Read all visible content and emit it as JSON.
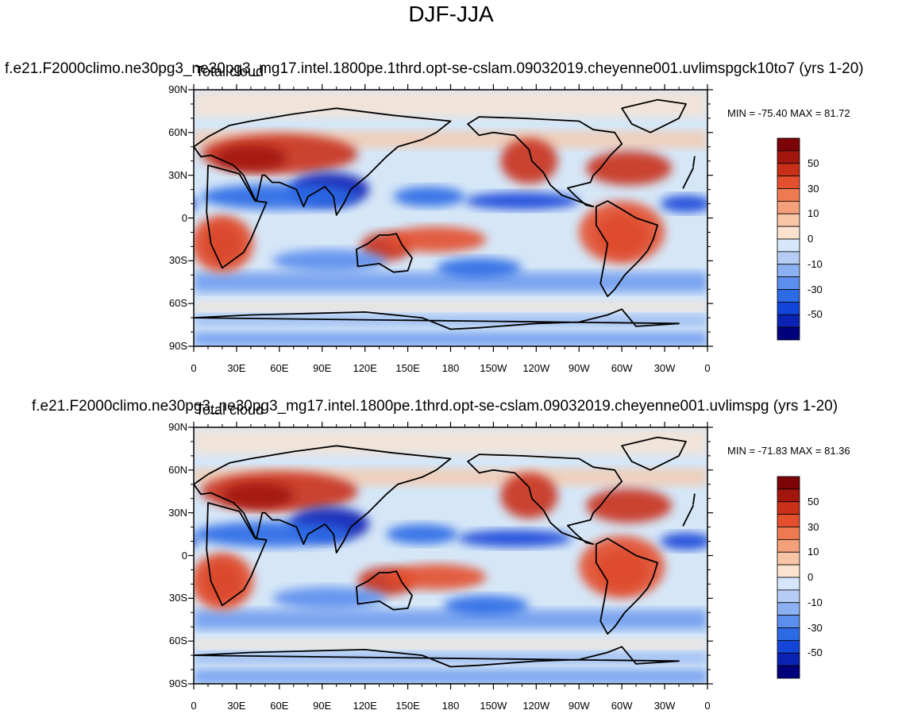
{
  "figure_title": "DJF-JJA",
  "colors": {
    "ocean_base": "#d5e6f7",
    "coast": "#000000",
    "levels": [
      "#00007d",
      "#0a23b5",
      "#1445d9",
      "#2c6ae6",
      "#5c8eee",
      "#8cb1f2",
      "#b5cdf5",
      "#d7e7fb",
      "#fbe3cf",
      "#f8c6a6",
      "#f4a07a",
      "#ee7a52",
      "#e4502e",
      "#c9301a",
      "#a3160e",
      "#7c0308"
    ]
  },
  "panels": [
    {
      "run_title": "f.e21.F2000climo.ne30pg3_ne30pg3_mg17.intel.1800pe.1thrd.opt-se-cslam.09032019.cheyenne001.uvlimspgck10to7 (yrs 1-20)",
      "variable": "Total cloud",
      "min_max": "MIN = -75.40 MAX =  81.72"
    },
    {
      "run_title": "f.e21.F2000climo.ne30pg3_ne30pg3_mg17.intel.1800pe.1thrd.opt-se-cslam.09032019.cheyenne001.uvlimspg (yrs 1-20)",
      "variable": "Total cloud",
      "min_max": "MIN = -71.83 MAX =  81.36"
    }
  ],
  "y_ticks": [
    "90N",
    "60N",
    "30N",
    "0",
    "30S",
    "60S",
    "90S"
  ],
  "x_ticks": [
    "0",
    "30E",
    "60E",
    "90E",
    "120E",
    "150E",
    "180",
    "150W",
    "120W",
    "90W",
    "60W",
    "30W",
    "0"
  ],
  "colorbar_labels": [
    "50",
    "30",
    "10",
    "0",
    "-10",
    "-30",
    "-50"
  ],
  "map_data": {
    "projection": "cylindrical equidistant",
    "lon_range": [
      0,
      360
    ],
    "lat_range": [
      -90,
      90
    ],
    "fields": [
      {
        "name": "upper-panel-anomaly",
        "blobs": [
          {
            "lon": 20,
            "lat": -18,
            "rx": 14,
            "ry": 14,
            "level": 15
          },
          {
            "lon": 20,
            "lat": -18,
            "rx": 22,
            "ry": 20,
            "level": 12
          },
          {
            "lon": 60,
            "lat": 45,
            "rx": 55,
            "ry": 14,
            "level": 13
          },
          {
            "lon": 40,
            "lat": 42,
            "rx": 25,
            "ry": 9,
            "level": 14
          },
          {
            "lon": 95,
            "lat": 20,
            "rx": 28,
            "ry": 12,
            "level": 1
          },
          {
            "lon": 60,
            "lat": 15,
            "rx": 55,
            "ry": 9,
            "level": 3
          },
          {
            "lon": 135,
            "lat": -20,
            "rx": 18,
            "ry": 10,
            "level": 13
          },
          {
            "lon": 170,
            "lat": -15,
            "rx": 35,
            "ry": 9,
            "level": 12
          },
          {
            "lon": 165,
            "lat": 15,
            "rx": 25,
            "ry": 7,
            "level": 3
          },
          {
            "lon": 230,
            "lat": 12,
            "rx": 40,
            "ry": 6,
            "level": 2
          },
          {
            "lon": 300,
            "lat": -12,
            "rx": 18,
            "ry": 14,
            "level": 14
          },
          {
            "lon": 300,
            "lat": -10,
            "rx": 30,
            "ry": 22,
            "level": 12
          },
          {
            "lon": 305,
            "lat": 35,
            "rx": 30,
            "ry": 12,
            "level": 13
          },
          {
            "lon": 235,
            "lat": 40,
            "rx": 20,
            "ry": 16,
            "level": 13
          },
          {
            "lon": 200,
            "lat": -35,
            "rx": 30,
            "ry": 7,
            "level": 3
          },
          {
            "lon": 345,
            "lat": 10,
            "rx": 18,
            "ry": 6,
            "level": 2
          },
          {
            "lon": 95,
            "lat": -30,
            "rx": 40,
            "ry": 8,
            "level": 4
          }
        ]
      },
      {
        "name": "lower-panel-anomaly",
        "blobs": [
          {
            "lon": 20,
            "lat": -18,
            "rx": 14,
            "ry": 14,
            "level": 15
          },
          {
            "lon": 20,
            "lat": -18,
            "rx": 22,
            "ry": 20,
            "level": 12
          },
          {
            "lon": 60,
            "lat": 45,
            "rx": 55,
            "ry": 14,
            "level": 13
          },
          {
            "lon": 45,
            "lat": 42,
            "rx": 25,
            "ry": 9,
            "level": 14
          },
          {
            "lon": 95,
            "lat": 22,
            "rx": 28,
            "ry": 12,
            "level": 1
          },
          {
            "lon": 55,
            "lat": 15,
            "rx": 55,
            "ry": 9,
            "level": 3
          },
          {
            "lon": 135,
            "lat": -18,
            "rx": 20,
            "ry": 10,
            "level": 13
          },
          {
            "lon": 170,
            "lat": -15,
            "rx": 35,
            "ry": 9,
            "level": 12
          },
          {
            "lon": 160,
            "lat": 15,
            "rx": 25,
            "ry": 7,
            "level": 3
          },
          {
            "lon": 225,
            "lat": 12,
            "rx": 40,
            "ry": 6,
            "level": 2
          },
          {
            "lon": 300,
            "lat": -10,
            "rx": 18,
            "ry": 14,
            "level": 14
          },
          {
            "lon": 300,
            "lat": -8,
            "rx": 30,
            "ry": 22,
            "level": 12
          },
          {
            "lon": 305,
            "lat": 35,
            "rx": 30,
            "ry": 12,
            "level": 13
          },
          {
            "lon": 235,
            "lat": 42,
            "rx": 20,
            "ry": 16,
            "level": 13
          },
          {
            "lon": 205,
            "lat": -35,
            "rx": 30,
            "ry": 7,
            "level": 3
          },
          {
            "lon": 345,
            "lat": 10,
            "rx": 18,
            "ry": 6,
            "level": 2
          },
          {
            "lon": 95,
            "lat": -30,
            "rx": 40,
            "ry": 8,
            "level": 4
          }
        ]
      }
    ],
    "coastlines": [
      {
        "name": "africa",
        "points": [
          [
            -17,
            21
          ],
          [
            -10,
            35
          ],
          [
            10,
            37
          ],
          [
            32,
            31
          ],
          [
            43,
            12
          ],
          [
            51,
            11
          ],
          [
            40,
            -15
          ],
          [
            35,
            -24
          ],
          [
            20,
            -35
          ],
          [
            12,
            -18
          ],
          [
            9,
            4
          ],
          [
            -10,
            5
          ]
        ]
      },
      {
        "name": "eurasia",
        "points": [
          [
            -10,
            36
          ],
          [
            -9,
            43
          ],
          [
            0,
            50
          ],
          [
            10,
            57
          ],
          [
            25,
            65
          ],
          [
            40,
            68
          ],
          [
            70,
            73
          ],
          [
            100,
            77
          ],
          [
            140,
            72
          ],
          [
            180,
            68
          ],
          [
            170,
            60
          ],
          [
            160,
            55
          ],
          [
            143,
            50
          ],
          [
            135,
            43
          ],
          [
            122,
            30
          ],
          [
            110,
            20
          ],
          [
            105,
            10
          ],
          [
            100,
            2
          ],
          [
            98,
            15
          ],
          [
            92,
            22
          ],
          [
            80,
            15
          ],
          [
            77,
            8
          ],
          [
            72,
            20
          ],
          [
            60,
            25
          ],
          [
            55,
            25
          ],
          [
            50,
            30
          ],
          [
            48,
            30
          ],
          [
            44,
            12
          ],
          [
            43,
            13
          ],
          [
            35,
            30
          ],
          [
            28,
            37
          ],
          [
            12,
            44
          ],
          [
            5,
            43
          ]
        ]
      },
      {
        "name": "australia",
        "points": [
          [
            114,
            -22
          ],
          [
            122,
            -18
          ],
          [
            130,
            -12
          ],
          [
            137,
            -12
          ],
          [
            142,
            -11
          ],
          [
            146,
            -19
          ],
          [
            153,
            -28
          ],
          [
            150,
            -37
          ],
          [
            140,
            -38
          ],
          [
            130,
            -32
          ],
          [
            115,
            -34
          ]
        ]
      },
      {
        "name": "north-america",
        "points": [
          [
            192,
            66
          ],
          [
            200,
            71
          ],
          [
            230,
            70
          ],
          [
            270,
            68
          ],
          [
            280,
            62
          ],
          [
            295,
            60
          ],
          [
            300,
            52
          ],
          [
            292,
            44
          ],
          [
            285,
            35
          ],
          [
            280,
            30
          ],
          [
            278,
            25
          ],
          [
            262,
            21
          ],
          [
            265,
            18
          ],
          [
            268,
            15
          ],
          [
            275,
            9
          ],
          [
            280,
            8
          ],
          [
            258,
            16
          ],
          [
            250,
            23
          ],
          [
            245,
            32
          ],
          [
            237,
            40
          ],
          [
            235,
            48
          ],
          [
            225,
            58
          ],
          [
            210,
            60
          ],
          [
            200,
            58
          ]
        ]
      },
      {
        "name": "south-america",
        "points": [
          [
            282,
            8
          ],
          [
            290,
            12
          ],
          [
            300,
            6
          ],
          [
            310,
            0
          ],
          [
            325,
            -5
          ],
          [
            322,
            -15
          ],
          [
            318,
            -23
          ],
          [
            312,
            -30
          ],
          [
            302,
            -40
          ],
          [
            295,
            -50
          ],
          [
            290,
            -55
          ],
          [
            285,
            -46
          ],
          [
            288,
            -30
          ],
          [
            290,
            -18
          ],
          [
            282,
            -5
          ]
        ]
      },
      {
        "name": "greenland",
        "points": [
          [
            300,
            77
          ],
          [
            325,
            83
          ],
          [
            345,
            80
          ],
          [
            340,
            70
          ],
          [
            320,
            60
          ],
          [
            307,
            66
          ]
        ]
      },
      {
        "name": "antarctica",
        "points": [
          [
            0,
            -70
          ],
          [
            40,
            -68
          ],
          [
            80,
            -67
          ],
          [
            120,
            -66
          ],
          [
            160,
            -70
          ],
          [
            180,
            -78
          ],
          [
            200,
            -77
          ],
          [
            240,
            -74
          ],
          [
            270,
            -73
          ],
          [
            290,
            -68
          ],
          [
            300,
            -64
          ],
          [
            310,
            -76
          ],
          [
            340,
            -74
          ],
          [
            360,
            -70
          ]
        ]
      }
    ]
  }
}
